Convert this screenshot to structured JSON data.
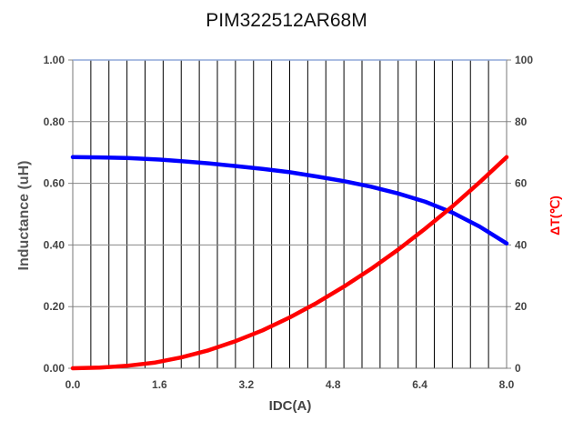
{
  "chart_data": {
    "type": "line",
    "title": "PIM322512AR68M",
    "xlabel": "IDC(A)",
    "ylabel": "Inductance  (uH)",
    "y2label": "ΔT(℃)",
    "xlim": [
      0,
      8.0
    ],
    "ylim": [
      0,
      1.0
    ],
    "y2lim": [
      0,
      100
    ],
    "x_ticks": [
      "0.0",
      "1.6",
      "3.2",
      "4.8",
      "6.4",
      "8.0"
    ],
    "y_ticks": [
      "0.00",
      "0.20",
      "0.40",
      "0.60",
      "0.80",
      "1.00"
    ],
    "y2_ticks": [
      "0",
      "20",
      "40",
      "60",
      "80",
      "100"
    ],
    "grid": true,
    "vertical_gridlines": 24,
    "series": [
      {
        "axis": "left",
        "color": "#0000ff",
        "x": [
          0,
          0.5,
          1.0,
          1.6,
          2.0,
          2.5,
          3.0,
          3.5,
          4.0,
          4.5,
          5.0,
          5.5,
          6.0,
          6.5,
          7.0,
          7.5,
          8.0
        ],
        "values": [
          0.685,
          0.684,
          0.682,
          0.677,
          0.672,
          0.665,
          0.656,
          0.647,
          0.636,
          0.622,
          0.607,
          0.589,
          0.567,
          0.54,
          0.505,
          0.46,
          0.405
        ]
      },
      {
        "axis": "right",
        "color": "#ff0000",
        "x": [
          0,
          0.5,
          1.0,
          1.5,
          2.0,
          2.5,
          3.0,
          3.5,
          4.0,
          4.5,
          5.0,
          5.5,
          6.0,
          6.5,
          7.0,
          7.5,
          8.0
        ],
        "values": [
          0,
          0.2,
          0.8,
          1.8,
          3.5,
          5.8,
          8.8,
          12.3,
          16.5,
          21.2,
          26.5,
          32.2,
          38.5,
          45.3,
          52.5,
          60.3,
          68.5
        ]
      }
    ]
  }
}
